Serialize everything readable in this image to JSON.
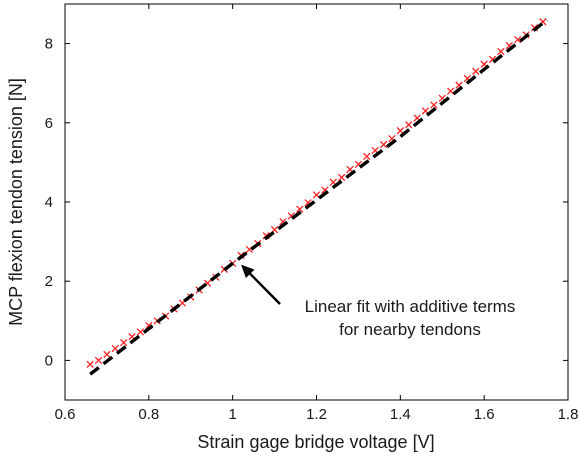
{
  "chart_data": {
    "type": "scatter",
    "title": "",
    "xlabel": "Strain gage bridge voltage [V]",
    "ylabel": "MCP flexion tendon tension [N]",
    "xlim": [
      0.6,
      1.8
    ],
    "ylim": [
      -1.0,
      9.0
    ],
    "x_ticks": [
      0.6,
      0.8,
      1.0,
      1.2,
      1.4,
      1.6,
      1.8
    ],
    "x_tick_labels": [
      "0.6",
      "0.8",
      "1",
      "1.2",
      "1.4",
      "1.6",
      "1.8"
    ],
    "y_ticks": [
      0,
      2,
      4,
      6,
      8
    ],
    "y_tick_labels": [
      "0",
      "2",
      "4",
      "6",
      "8"
    ],
    "grid": false,
    "series": [
      {
        "kind": "scatter",
        "marker": "x",
        "color": "#ff2020",
        "x": [
          0.66,
          0.68,
          0.7,
          0.72,
          0.74,
          0.76,
          0.78,
          0.8,
          0.82,
          0.84,
          0.86,
          0.88,
          0.9,
          0.92,
          0.94,
          0.96,
          0.98,
          1.0,
          1.02,
          1.04,
          1.06,
          1.08,
          1.1,
          1.12,
          1.14,
          1.16,
          1.18,
          1.2,
          1.22,
          1.24,
          1.26,
          1.28,
          1.3,
          1.32,
          1.34,
          1.36,
          1.38,
          1.4,
          1.42,
          1.44,
          1.46,
          1.48,
          1.5,
          1.52,
          1.54,
          1.56,
          1.58,
          1.6,
          1.62,
          1.64,
          1.66,
          1.68,
          1.7,
          1.72,
          1.74
        ],
        "y": [
          -0.1,
          0.0,
          0.15,
          0.3,
          0.45,
          0.6,
          0.72,
          0.88,
          1.0,
          1.12,
          1.3,
          1.45,
          1.6,
          1.78,
          1.95,
          2.1,
          2.3,
          2.45,
          2.65,
          2.8,
          2.95,
          3.15,
          3.3,
          3.5,
          3.65,
          3.82,
          3.98,
          4.18,
          4.3,
          4.5,
          4.62,
          4.82,
          4.95,
          5.15,
          5.3,
          5.45,
          5.6,
          5.8,
          5.95,
          6.12,
          6.3,
          6.45,
          6.62,
          6.8,
          6.95,
          7.12,
          7.3,
          7.48,
          7.6,
          7.8,
          7.95,
          8.1,
          8.22,
          8.4,
          8.55
        ]
      },
      {
        "kind": "line",
        "style": "dashed",
        "color": "#000000",
        "x": [
          0.66,
          1.0,
          1.2,
          1.4,
          1.6,
          1.75
        ],
        "y": [
          -0.35,
          2.45,
          4.05,
          5.65,
          7.35,
          8.6
        ]
      }
    ],
    "annotations": [
      {
        "lines": [
          "Linear fit with additive terms",
          "for nearby tendons"
        ],
        "arrow_to": [
          1.02,
          2.42
        ]
      }
    ]
  }
}
